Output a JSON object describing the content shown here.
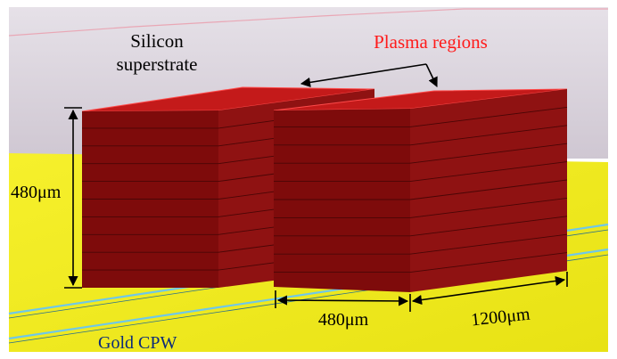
{
  "labels": {
    "superstrate_line1": "Silicon",
    "superstrate_line2": "superstrate",
    "plasma": "Plasma regions",
    "height": "480μm",
    "width": "480μm",
    "length": "1200μm",
    "cpw": "Gold CPW"
  },
  "colors": {
    "plasma_label": "#ff1a1a",
    "block_front": "#7e0b0b",
    "block_side": "#8f1212",
    "block_top": "#c41a1a",
    "substrate": "#f2ec1e",
    "superstrate": "#ddd6e0",
    "cpw_line": "#6fc7e8"
  }
}
